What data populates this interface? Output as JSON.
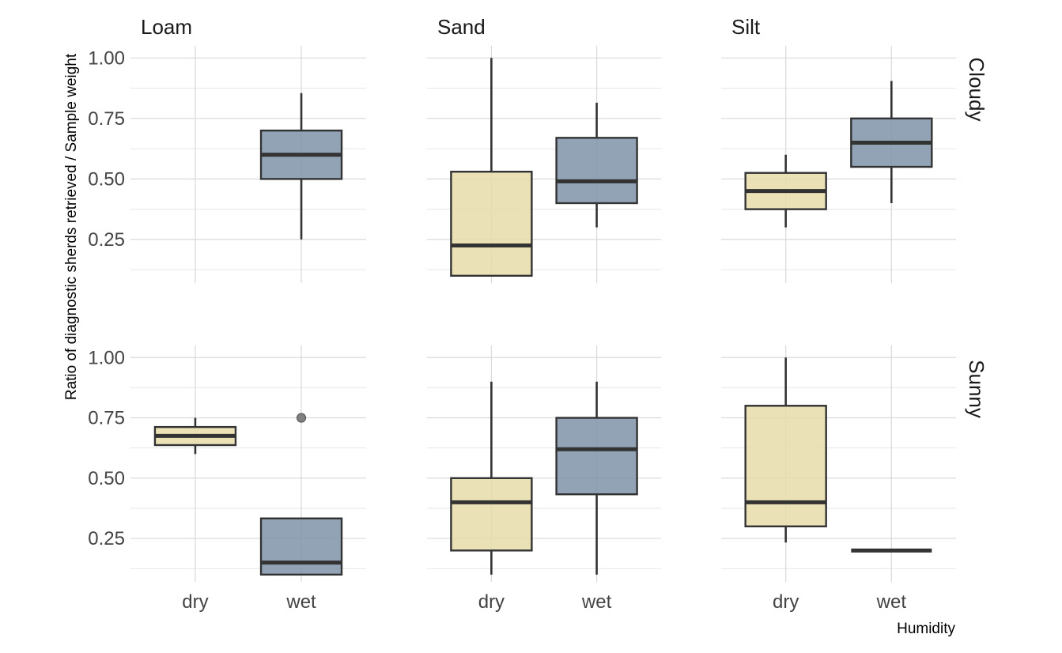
{
  "chart_data": {
    "type": "box",
    "title": "",
    "xlabel": "Humidity",
    "ylabel": "Ratio of diagnostic sherds retrieved / Sample weight",
    "ylim": [
      0.07,
      1.05
    ],
    "yticks": [
      "0.25",
      "0.50",
      "0.75",
      "1.00"
    ],
    "categories": [
      "dry",
      "wet"
    ],
    "columns": [
      "Loam",
      "Sand",
      "Silt"
    ],
    "rows": [
      "Cloudy",
      "Sunny"
    ],
    "colors": {
      "dry": "#e8dcaa",
      "wet": "#7e93a8"
    },
    "grid": true,
    "legend": "none",
    "panels": [
      {
        "row": "Cloudy",
        "column": "Loam",
        "boxes": [
          {
            "x": "wet",
            "min": 0.25,
            "q1": 0.5,
            "median": 0.6,
            "q3": 0.7,
            "max": 0.855,
            "outliers": []
          }
        ]
      },
      {
        "row": "Cloudy",
        "column": "Sand",
        "boxes": [
          {
            "x": "dry",
            "min": 0.1,
            "q1": 0.1,
            "median": 0.225,
            "q3": 0.53,
            "max": 1.0,
            "outliers": []
          },
          {
            "x": "wet",
            "min": 0.3,
            "q1": 0.4,
            "median": 0.49,
            "q3": 0.67,
            "max": 0.815,
            "outliers": []
          }
        ]
      },
      {
        "row": "Cloudy",
        "column": "Silt",
        "boxes": [
          {
            "x": "dry",
            "min": 0.3,
            "q1": 0.375,
            "median": 0.45,
            "q3": 0.525,
            "max": 0.6,
            "outliers": []
          },
          {
            "x": "wet",
            "min": 0.4,
            "q1": 0.55,
            "median": 0.65,
            "q3": 0.75,
            "max": 0.905,
            "outliers": []
          }
        ]
      },
      {
        "row": "Sunny",
        "column": "Loam",
        "boxes": [
          {
            "x": "dry",
            "min": 0.6,
            "q1": 0.637,
            "median": 0.675,
            "q3": 0.712,
            "max": 0.75,
            "outliers": []
          },
          {
            "x": "wet",
            "min": 0.1,
            "q1": 0.1,
            "median": 0.15,
            "q3": 0.333,
            "max": 0.333,
            "outliers": [
              0.75
            ]
          }
        ]
      },
      {
        "row": "Sunny",
        "column": "Sand",
        "boxes": [
          {
            "x": "dry",
            "min": 0.1,
            "q1": 0.2,
            "median": 0.4,
            "q3": 0.5,
            "max": 0.9,
            "outliers": []
          },
          {
            "x": "wet",
            "min": 0.1,
            "q1": 0.433,
            "median": 0.62,
            "q3": 0.75,
            "max": 0.9,
            "outliers": []
          }
        ]
      },
      {
        "row": "Sunny",
        "column": "Silt",
        "boxes": [
          {
            "x": "dry",
            "min": 0.233,
            "q1": 0.3,
            "median": 0.4,
            "q3": 0.8,
            "max": 1.0,
            "outliers": []
          },
          {
            "x": "wet",
            "min": 0.2,
            "q1": 0.2,
            "median": 0.2,
            "q3": 0.2,
            "max": 0.2,
            "outliers": []
          }
        ]
      }
    ]
  }
}
